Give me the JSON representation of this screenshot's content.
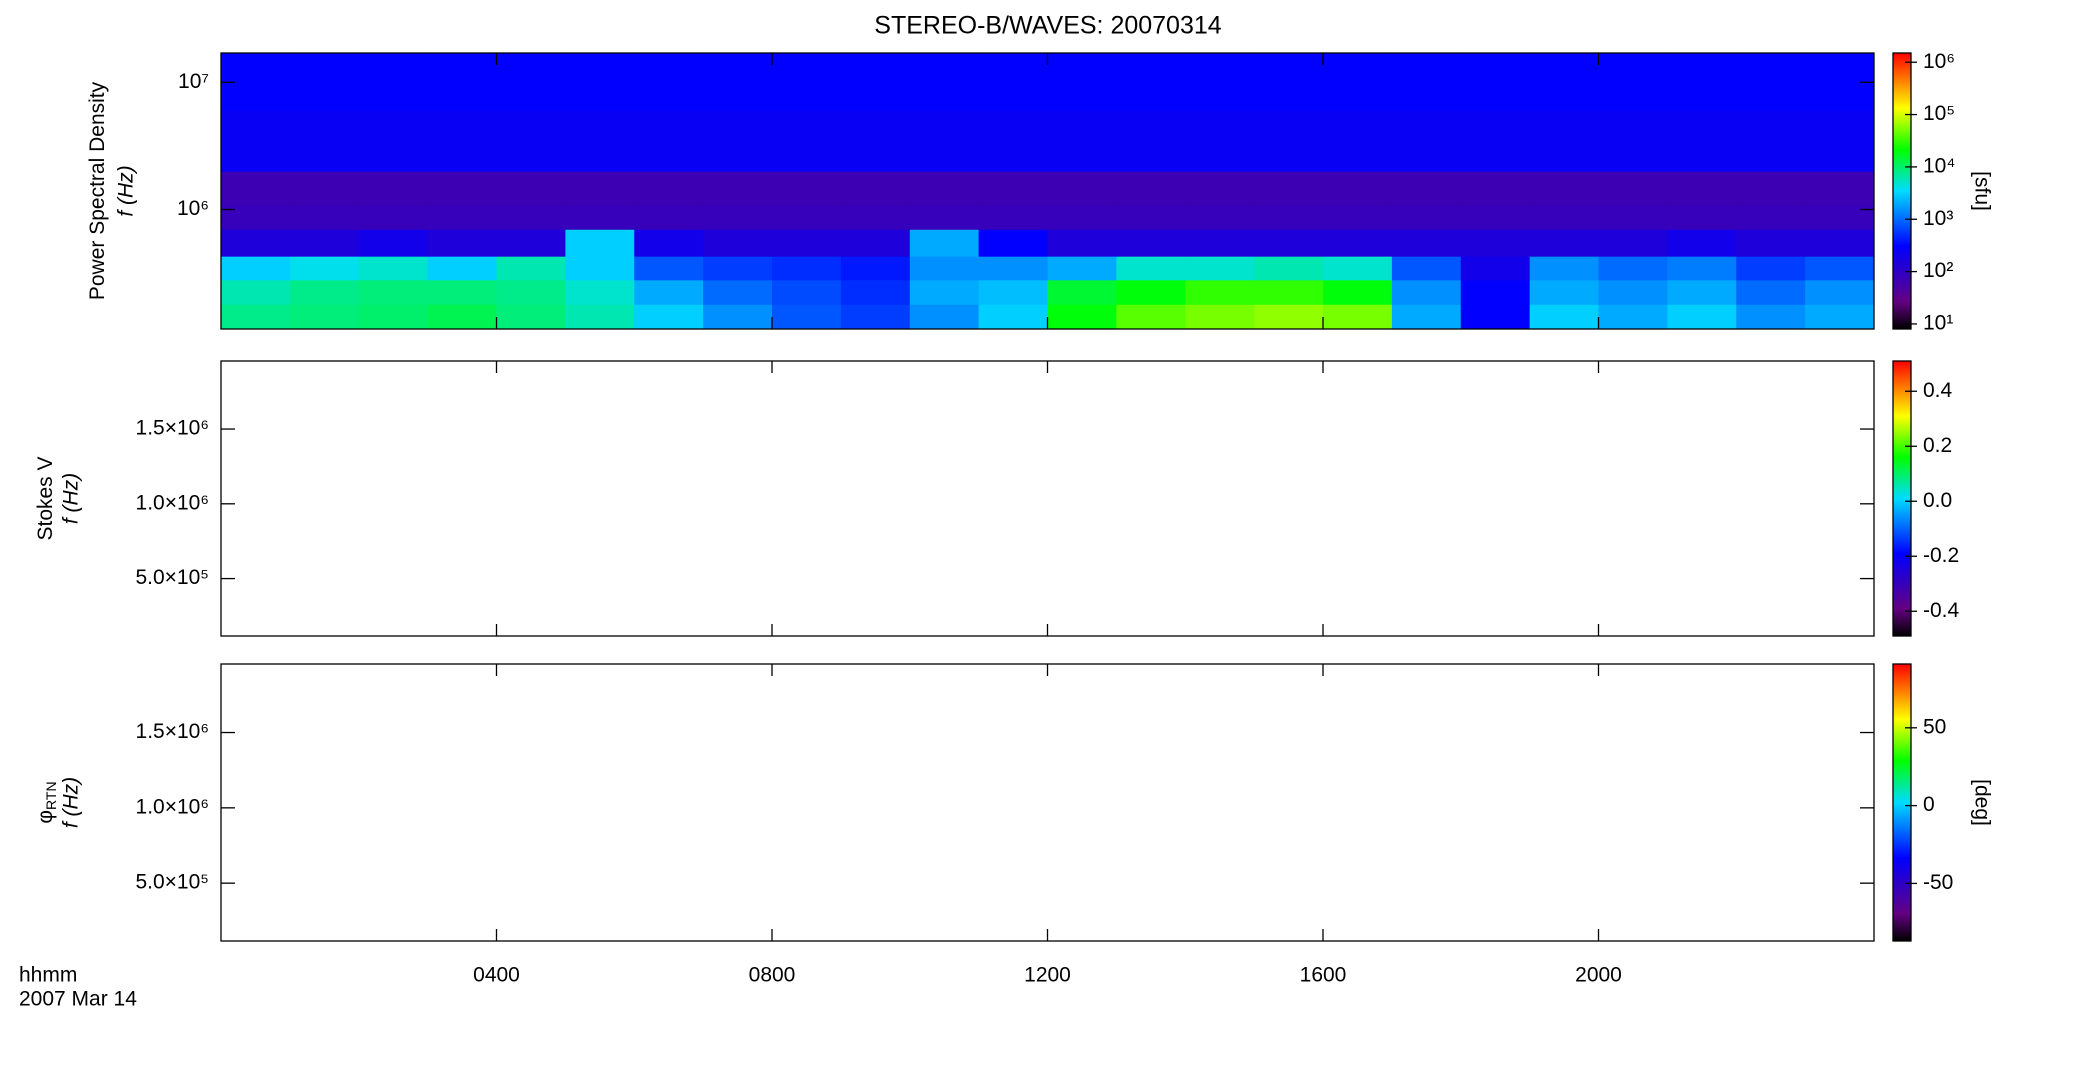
{
  "chart_data": [
    {
      "type": "spectrogram",
      "title": "STEREO-B/WAVES: 20070314",
      "ylabel": "Power Spectral Density",
      "ylabel2": "f (Hz)",
      "ylog": true,
      "xlim": [
        0,
        24
      ],
      "ylim": [
        115000,
        17000000
      ],
      "yticks": [
        {
          "value": 1000000,
          "label": "10⁶"
        },
        {
          "value": 10000000,
          "label": "10⁷"
        }
      ],
      "clim": [
        8,
        1500000
      ],
      "clog": true,
      "clabel": "[sfu]",
      "cticks": [
        {
          "value": 10,
          "label": "10¹"
        },
        {
          "value": 100,
          "label": "10²"
        },
        {
          "value": 1000,
          "label": "10³"
        },
        {
          "value": 10000,
          "label": "10⁴"
        },
        {
          "value": 100000,
          "label": "10⁵"
        },
        {
          "value": 1000000,
          "label": "10⁶"
        }
      ],
      "time_bins": [
        0,
        1,
        2,
        3,
        4,
        5,
        6,
        7,
        8,
        9,
        10,
        11,
        12,
        13,
        14,
        15,
        16,
        17,
        18,
        19,
        20,
        21,
        22,
        23,
        24
      ],
      "freq_bins": [
        115000,
        180000,
        280000,
        430000,
        700000,
        1100000,
        2000000,
        3500000,
        6000000,
        10000000,
        17000000
      ],
      "z": [
        [
          8000,
          9000,
          10000,
          12000,
          9000,
          6000,
          3000,
          1500,
          800,
          600,
          1500,
          3000,
          20000,
          40000,
          50000,
          60000,
          50000,
          2000,
          300,
          3000,
          2000,
          3000,
          1500,
          2000
        ],
        [
          6000,
          8000,
          9000,
          9000,
          8000,
          5000,
          2000,
          1000,
          700,
          500,
          2000,
          2500,
          15000,
          20000,
          30000,
          30000,
          20000,
          1500,
          300,
          2000,
          1500,
          2000,
          1000,
          1500
        ],
        [
          3000,
          4000,
          5000,
          3000,
          6000,
          3000,
          800,
          600,
          500,
          400,
          1500,
          1500,
          2000,
          5000,
          5000,
          6000,
          5000,
          800,
          200,
          1500,
          1000,
          1200,
          600,
          800
        ],
        [
          150,
          150,
          200,
          150,
          150,
          3000,
          200,
          150,
          150,
          150,
          2000,
          300,
          150,
          150,
          150,
          150,
          150,
          150,
          150,
          150,
          150,
          200,
          150,
          150
        ],
        [
          80,
          80,
          80,
          80,
          80,
          80,
          80,
          80,
          80,
          80,
          80,
          80,
          80,
          80,
          80,
          80,
          80,
          80,
          80,
          80,
          80,
          80,
          80,
          80
        ],
        [
          70,
          70,
          70,
          70,
          70,
          70,
          70,
          70,
          70,
          70,
          70,
          70,
          70,
          70,
          70,
          70,
          70,
          70,
          70,
          70,
          70,
          70,
          70,
          70
        ],
        [
          250,
          250,
          250,
          250,
          250,
          250,
          250,
          250,
          250,
          250,
          250,
          250,
          250,
          250,
          250,
          250,
          250,
          250,
          250,
          250,
          250,
          250,
          250,
          250
        ],
        [
          250,
          250,
          250,
          250,
          250,
          250,
          250,
          250,
          250,
          250,
          250,
          250,
          250,
          250,
          250,
          250,
          250,
          250,
          250,
          250,
          250,
          250,
          250,
          250
        ],
        [
          300,
          300,
          300,
          300,
          300,
          300,
          300,
          300,
          300,
          300,
          300,
          300,
          300,
          300,
          300,
          300,
          300,
          300,
          300,
          300,
          300,
          300,
          300,
          300
        ],
        [
          300,
          300,
          300,
          300,
          300,
          300,
          300,
          300,
          300,
          300,
          300,
          300,
          300,
          300,
          300,
          300,
          300,
          300,
          300,
          300,
          300,
          300,
          300,
          300
        ]
      ]
    },
    {
      "type": "spectrogram",
      "ylabel": "Stokes V",
      "ylabel2": "f (Hz)",
      "xlim": [
        0,
        24
      ],
      "ylim": [
        116000,
        1955000
      ],
      "yticks": [
        {
          "value": 500000,
          "label": "5.0×10⁵"
        },
        {
          "value": 1000000,
          "label": "1.0×10⁶"
        },
        {
          "value": 1500000,
          "label": "1.5×10⁶"
        }
      ],
      "clim": [
        -0.49,
        0.51
      ],
      "cticks": [
        {
          "value": -0.4,
          "label": "-0.4"
        },
        {
          "value": -0.2,
          "label": "-0.2"
        },
        {
          "value": 0,
          "label": "0.0"
        },
        {
          "value": 0.2,
          "label": "0.2"
        },
        {
          "value": 0.4,
          "label": "0.4"
        }
      ]
    },
    {
      "type": "spectrogram",
      "ylabel": "φ",
      "ylabel_sub": "RTN",
      "ylabel2": "f (Hz)",
      "xlim": [
        0,
        24
      ],
      "ylim": [
        116000,
        1955000
      ],
      "yticks": [
        {
          "value": 500000,
          "label": "5.0×10⁵"
        },
        {
          "value": 1000000,
          "label": "1.0×10⁶"
        },
        {
          "value": 1500000,
          "label": "1.5×10⁶"
        }
      ],
      "clim": [
        -87,
        91
      ],
      "clabel": "[deg]",
      "cticks": [
        -50,
        0,
        50
      ],
      "xlabel": "hhmm",
      "date": "2007 Mar 14",
      "xticks": [
        {
          "value": 4,
          "label": "0400"
        },
        {
          "value": 8,
          "label": "0800"
        },
        {
          "value": 12,
          "label": "1200"
        },
        {
          "value": 16,
          "label": "1600"
        },
        {
          "value": 20,
          "label": "2000"
        }
      ]
    }
  ]
}
